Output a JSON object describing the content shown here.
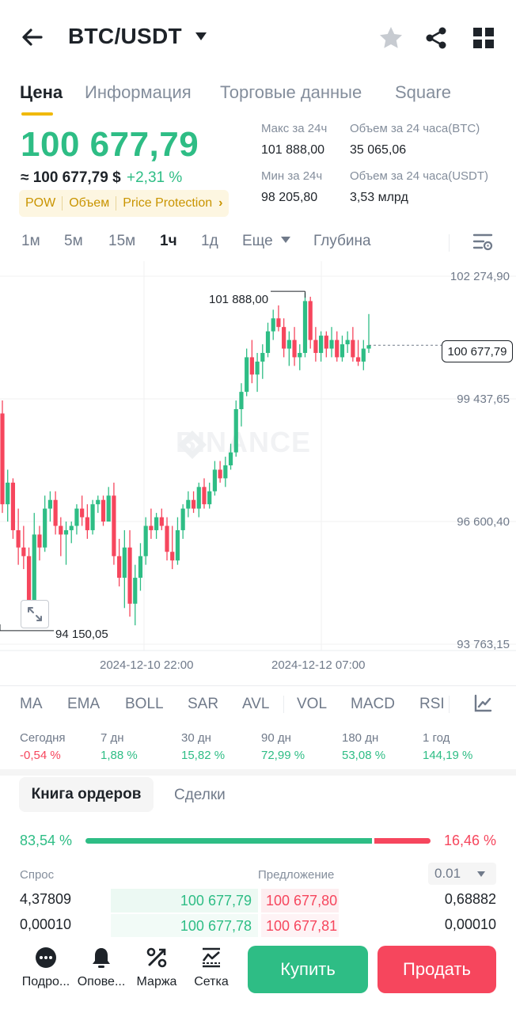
{
  "header": {
    "pair": "BTC/USDT",
    "icons": [
      "back-arrow-icon",
      "caret-down-icon",
      "star-icon",
      "share-icon",
      "grid-icon"
    ]
  },
  "tabs": [
    {
      "label": "Цена",
      "active": true
    },
    {
      "label": "Информация",
      "active": false
    },
    {
      "label": "Торговые данные",
      "active": false
    },
    {
      "label": "Square",
      "active": false
    }
  ],
  "price": {
    "last": "100 677,79",
    "approx": "≈ 100 677,79 $",
    "change": "+2,31 %",
    "tags": [
      "POW",
      "Объем",
      "Price Protection"
    ],
    "tag_chevron": "›"
  },
  "stats": {
    "high_label": "Макс за 24ч",
    "high_value": "101 888,00",
    "low_label": "Мин за 24ч",
    "low_value": "98 205,80",
    "vol_btc_label": "Объем за 24 часа(BTC)",
    "vol_btc_value": "35 065,06",
    "vol_usdt_label": "Объем за 24 часа(USDT)",
    "vol_usdt_value": "3,53 млрд"
  },
  "intervals": [
    {
      "label": "1м",
      "active": false
    },
    {
      "label": "5м",
      "active": false
    },
    {
      "label": "15м",
      "active": false
    },
    {
      "label": "1ч",
      "active": true
    },
    {
      "label": "1д",
      "active": false
    },
    {
      "label": "Еще",
      "active": false
    },
    {
      "label": "Глубина",
      "active": false
    }
  ],
  "chart": {
    "watermark": "BINANCE",
    "current_price_label": "100 677,79",
    "high_label": "101 888,00",
    "low_label": "94 150,05"
  },
  "chart_data": {
    "type": "candlestick",
    "y_ticks": [
      "102 274,90",
      "99 437,65",
      "96 600,40",
      "93 763,15"
    ],
    "y_tick_values": [
      102274.9,
      99437.65,
      96600.4,
      93763.15
    ],
    "ylim": [
      93763.15,
      102274.9
    ],
    "x_ticks": [
      "2024-12-10 22:00",
      "2024-12-12 07:00"
    ],
    "current_price": 100677.79,
    "high": 101888.0,
    "low": 94150.05,
    "grid": true,
    "up_color": "#2ebd85",
    "down_color": "#f6465d",
    "candles": [
      [
        99100,
        99400,
        96800,
        97000
      ],
      [
        97000,
        97800,
        96600,
        97500
      ],
      [
        97500,
        97600,
        96200,
        96400
      ],
      [
        96400,
        96900,
        95600,
        96000
      ],
      [
        96000,
        96500,
        95500,
        95800
      ],
      [
        95800,
        96000,
        94150,
        94400
      ],
      [
        94400,
        96800,
        94300,
        96300
      ],
      [
        96300,
        96500,
        95700,
        96000
      ],
      [
        96000,
        97200,
        95900,
        96900
      ],
      [
        96900,
        97300,
        96600,
        97100
      ],
      [
        97100,
        97300,
        96300,
        96500
      ],
      [
        96500,
        96700,
        95800,
        96300
      ],
      [
        96300,
        96600,
        95600,
        96400
      ],
      [
        96400,
        96600,
        96100,
        96500
      ],
      [
        96500,
        97000,
        96300,
        96900
      ],
      [
        96900,
        97200,
        96500,
        96700
      ],
      [
        96700,
        97000,
        96200,
        96400
      ],
      [
        96400,
        97100,
        96300,
        97000
      ],
      [
        97000,
        97200,
        96800,
        97100
      ],
      [
        97100,
        97200,
        96500,
        96600
      ],
      [
        96600,
        97400,
        96600,
        97200
      ],
      [
        97200,
        97500,
        95600,
        95800
      ],
      [
        95800,
        96200,
        95100,
        95300
      ],
      [
        95300,
        96400,
        94600,
        96000
      ],
      [
        96000,
        96400,
        94400,
        94700
      ],
      [
        94700,
        95600,
        94200,
        95300
      ],
      [
        95300,
        96100,
        95000,
        95800
      ],
      [
        95800,
        96700,
        95600,
        96500
      ],
      [
        96500,
        96900,
        96200,
        96400
      ],
      [
        96400,
        96800,
        96200,
        96700
      ],
      [
        96700,
        96900,
        96400,
        96500
      ],
      [
        96500,
        96700,
        95700,
        95900
      ],
      [
        95900,
        96500,
        95500,
        95700
      ],
      [
        95700,
        96700,
        95600,
        96400
      ],
      [
        96400,
        97000,
        96200,
        96900
      ],
      [
        96900,
        97300,
        96700,
        97100
      ],
      [
        97100,
        97300,
        96800,
        96900
      ],
      [
        96900,
        97500,
        96700,
        97400
      ],
      [
        97400,
        97600,
        96900,
        97000
      ],
      [
        97000,
        97500,
        96900,
        97300
      ],
      [
        97300,
        98000,
        97200,
        97800
      ],
      [
        97800,
        98000,
        97500,
        97600
      ],
      [
        97600,
        98100,
        97400,
        97900
      ],
      [
        97900,
        98400,
        97800,
        98200
      ],
      [
        98200,
        99400,
        98100,
        99200
      ],
      [
        99200,
        99800,
        98800,
        99600
      ],
      [
        99600,
        100600,
        99500,
        100400
      ],
      [
        100400,
        100800,
        99800,
        100000
      ],
      [
        100000,
        100500,
        99600,
        100300
      ],
      [
        100300,
        100700,
        99900,
        100500
      ],
      [
        100500,
        101200,
        100400,
        101000
      ],
      [
        101000,
        101500,
        100800,
        101300
      ],
      [
        101300,
        101600,
        101000,
        101100
      ],
      [
        101100,
        101300,
        100400,
        100600
      ],
      [
        100600,
        101000,
        100200,
        100800
      ],
      [
        100800,
        101100,
        100200,
        100400
      ],
      [
        100400,
        100700,
        100100,
        100500
      ],
      [
        100500,
        101888,
        100400,
        101700
      ],
      [
        101700,
        101800,
        100600,
        100800
      ],
      [
        100800,
        101100,
        100300,
        100500
      ],
      [
        100500,
        101000,
        100300,
        100900
      ],
      [
        100900,
        101000,
        100400,
        100600
      ],
      [
        100600,
        101100,
        100400,
        100800
      ],
      [
        100800,
        101000,
        100300,
        100400
      ],
      [
        100400,
        100900,
        100300,
        100700
      ],
      [
        100700,
        101000,
        100500,
        100800
      ],
      [
        100800,
        101100,
        100300,
        100400
      ],
      [
        100400,
        100800,
        100200,
        100300
      ],
      [
        100300,
        100800,
        100100,
        100600
      ],
      [
        100600,
        101400,
        100500,
        100678
      ]
    ]
  },
  "indicators": [
    "MA",
    "EMA",
    "BOLL",
    "SAR",
    "AVL",
    "VOL",
    "MACD",
    "RSI"
  ],
  "performance": [
    {
      "label": "Сегодня",
      "value": "-0,54 %",
      "color": "#f6465d"
    },
    {
      "label": "7 дн",
      "value": "1,88 %",
      "color": "#2ebd85"
    },
    {
      "label": "30 дн",
      "value": "15,82 %",
      "color": "#2ebd85"
    },
    {
      "label": "90 дн",
      "value": "72,99 %",
      "color": "#2ebd85"
    },
    {
      "label": "180 дн",
      "value": "53,08 %",
      "color": "#2ebd85"
    },
    {
      "label": "1 год",
      "value": "144,19 %",
      "color": "#2ebd85"
    }
  ],
  "orderbook": {
    "tab_active": "Книга ордеров",
    "tab_other": "Сделки",
    "bid_ratio": "83,54 %",
    "ask_ratio": "16,46 %",
    "bid_label": "Спрос",
    "ask_label": "Предложение",
    "precision": "0.01",
    "rows": [
      {
        "bid_qty": "4,37809",
        "bid_price": "100 677,79",
        "ask_price": "100 677,80",
        "ask_qty": "0,68882"
      },
      {
        "bid_qty": "0,00010",
        "bid_price": "100 677,78",
        "ask_price": "100 677,81",
        "ask_qty": "0,00010"
      }
    ]
  },
  "bottom_nav": {
    "items": [
      "Подро...",
      "Опове...",
      "Маржа",
      "Сетка"
    ],
    "buy": "Купить",
    "sell": "Продать"
  }
}
